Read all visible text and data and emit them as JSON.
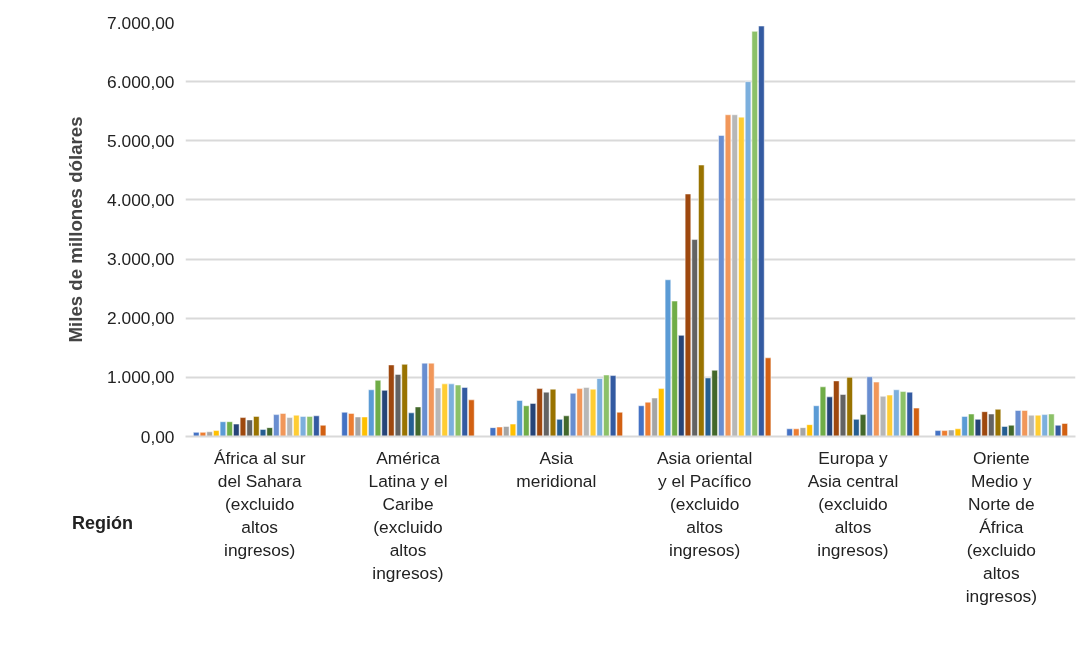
{
  "chart_data": {
    "type": "bar",
    "ylabel": "Miles de millones dólares",
    "xlabel": "Región",
    "categories": [
      "África al sur\ndel Sahara\n(excluido\naltos\ningresos)",
      "América\nLatina y el\nCaribe\n(excluido\naltos\ningresos)",
      "Asia\nmeridional",
      "Asia oriental\ny el Pacífico\n(excluido\naltos\ningresos)",
      "Europa y\nAsia central\n(excluido\naltos\ningresos)",
      "Oriente\nMedio y\nNorte de\nÁfrica\n(excluido\naltos\ningresos)"
    ],
    "series": [
      {
        "color": "#4472c4",
        "values": [
          70,
          410,
          150,
          520,
          130,
          100
        ]
      },
      {
        "color": "#ed7d31",
        "values": [
          70,
          390,
          160,
          580,
          130,
          100
        ]
      },
      {
        "color": "#a5a5a5",
        "values": [
          80,
          330,
          170,
          650,
          150,
          110
        ]
      },
      {
        "color": "#ffc000",
        "values": [
          100,
          330,
          210,
          810,
          200,
          130
        ]
      },
      {
        "color": "#5b9bd5",
        "values": [
          250,
          790,
          610,
          2650,
          520,
          340
        ]
      },
      {
        "color": "#70ad47",
        "values": [
          250,
          950,
          520,
          2290,
          840,
          380
        ]
      },
      {
        "color": "#264478",
        "values": [
          210,
          780,
          560,
          1710,
          670,
          290
        ]
      },
      {
        "color": "#9e480e",
        "values": [
          320,
          1210,
          810,
          4100,
          940,
          420
        ]
      },
      {
        "color": "#636363",
        "values": [
          280,
          1050,
          750,
          3330,
          710,
          380
        ]
      },
      {
        "color": "#997300",
        "values": [
          340,
          1220,
          800,
          4590,
          1000,
          460
        ]
      },
      {
        "color": "#255e91",
        "values": [
          120,
          400,
          290,
          990,
          290,
          170
        ]
      },
      {
        "color": "#43682b",
        "values": [
          150,
          500,
          350,
          1120,
          370,
          190
        ]
      },
      {
        "color": "#698ed0",
        "values": [
          370,
          1240,
          730,
          5090,
          1010,
          440
        ]
      },
      {
        "color": "#f1975a",
        "values": [
          390,
          1240,
          810,
          5440,
          920,
          440
        ]
      },
      {
        "color": "#b7b7b7",
        "values": [
          320,
          820,
          830,
          5440,
          680,
          360
        ]
      },
      {
        "color": "#ffcd33",
        "values": [
          360,
          890,
          800,
          5400,
          700,
          360
        ]
      },
      {
        "color": "#7cafdd",
        "values": [
          340,
          890,
          980,
          6000,
          790,
          370
        ]
      },
      {
        "color": "#8cc168",
        "values": [
          340,
          870,
          1040,
          6850,
          760,
          380
        ]
      },
      {
        "color": "#335aa1",
        "values": [
          350,
          830,
          1030,
          6940,
          750,
          190
        ]
      },
      {
        "color": "#d26012",
        "values": [
          190,
          620,
          410,
          1330,
          480,
          220
        ]
      }
    ],
    "ylim": [
      0,
      7000
    ],
    "yticks": [
      {
        "value": 0,
        "label": "0,00"
      },
      {
        "value": 1000,
        "label": "1.000,00"
      },
      {
        "value": 2000,
        "label": "2.000,00"
      },
      {
        "value": 3000,
        "label": "3.000,00"
      },
      {
        "value": 4000,
        "label": "4.000,00"
      },
      {
        "value": 5000,
        "label": "5.000,00"
      },
      {
        "value": 6000,
        "label": "6.000,00"
      },
      {
        "value": 7000,
        "label": "7.000,00"
      }
    ],
    "grid": "y"
  }
}
